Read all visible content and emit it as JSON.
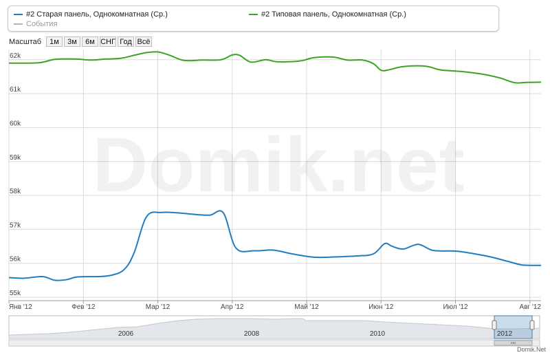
{
  "legend": {
    "items": [
      {
        "label": "#2 Старая панель, Однокомнатная (Ср.)",
        "color": "#1c7cc4"
      },
      {
        "label": "#2 Типовая панель, Однокомнатная (Ср.)",
        "color": "#3aa424"
      },
      {
        "label": "События",
        "color": "#b3b3b3"
      }
    ]
  },
  "zoom": {
    "label": "Масштаб",
    "buttons": [
      "1м",
      "3м",
      "6м",
      "СНГ",
      "Год",
      "Всё"
    ]
  },
  "watermark": "Domik.net",
  "credit": "Domik.Net",
  "navigator": {
    "years": [
      "2006",
      "2008",
      "2010",
      "2012"
    ]
  },
  "chart_data": {
    "type": "line",
    "x_ticks": [
      "Янв '12",
      "Фев '12",
      "Мар '12",
      "Апр '12",
      "Май '12",
      "Июн '12",
      "Июл '12",
      "Авг '12"
    ],
    "y_ticks": [
      "55k",
      "56k",
      "57k",
      "58k",
      "59k",
      "60k",
      "61k",
      "62k"
    ],
    "ylim": [
      54900,
      62300
    ],
    "xlim": [
      0,
      7.15
    ],
    "grid": true,
    "series": [
      {
        "name": "#2 Старая панель, Однокомнатная (Ср.)",
        "color": "#1c7cc4",
        "points": [
          [
            0.0,
            55580
          ],
          [
            0.2,
            55560
          ],
          [
            0.45,
            55610
          ],
          [
            0.62,
            55500
          ],
          [
            0.78,
            55520
          ],
          [
            0.92,
            55600
          ],
          [
            1.2,
            55610
          ],
          [
            1.38,
            55650
          ],
          [
            1.55,
            55820
          ],
          [
            1.68,
            56300
          ],
          [
            1.85,
            57380
          ],
          [
            2.05,
            57500
          ],
          [
            2.25,
            57490
          ],
          [
            2.5,
            57440
          ],
          [
            2.7,
            57420
          ],
          [
            2.88,
            57490
          ],
          [
            3.05,
            56450
          ],
          [
            3.3,
            56370
          ],
          [
            3.55,
            56390
          ],
          [
            3.8,
            56280
          ],
          [
            4.1,
            56180
          ],
          [
            4.4,
            56190
          ],
          [
            4.7,
            56220
          ],
          [
            4.9,
            56280
          ],
          [
            5.05,
            56580
          ],
          [
            5.15,
            56500
          ],
          [
            5.3,
            56420
          ],
          [
            5.5,
            56560
          ],
          [
            5.7,
            56380
          ],
          [
            6.0,
            56360
          ],
          [
            6.2,
            56300
          ],
          [
            6.45,
            56200
          ],
          [
            6.7,
            56060
          ],
          [
            6.9,
            55950
          ],
          [
            7.15,
            55940
          ]
        ]
      },
      {
        "name": "#2 Типовая панель, Однокомнатная (Ср.)",
        "color": "#3aa424",
        "points": [
          [
            0.0,
            61900
          ],
          [
            0.4,
            61910
          ],
          [
            0.62,
            62010
          ],
          [
            0.9,
            62020
          ],
          [
            1.1,
            61990
          ],
          [
            1.3,
            62020
          ],
          [
            1.5,
            62040
          ],
          [
            1.7,
            62140
          ],
          [
            1.85,
            62210
          ],
          [
            2.0,
            62230
          ],
          [
            2.15,
            62140
          ],
          [
            2.35,
            61980
          ],
          [
            2.6,
            61990
          ],
          [
            2.85,
            62000
          ],
          [
            3.0,
            62140
          ],
          [
            3.1,
            62130
          ],
          [
            3.25,
            61930
          ],
          [
            3.45,
            62000
          ],
          [
            3.6,
            61940
          ],
          [
            3.9,
            61960
          ],
          [
            4.1,
            62060
          ],
          [
            4.35,
            62080
          ],
          [
            4.55,
            61990
          ],
          [
            4.75,
            61990
          ],
          [
            4.9,
            61880
          ],
          [
            5.0,
            61690
          ],
          [
            5.1,
            61700
          ],
          [
            5.3,
            61800
          ],
          [
            5.6,
            61810
          ],
          [
            5.8,
            61700
          ],
          [
            6.1,
            61650
          ],
          [
            6.4,
            61560
          ],
          [
            6.6,
            61460
          ],
          [
            6.8,
            61320
          ],
          [
            6.95,
            61330
          ],
          [
            7.15,
            61340
          ]
        ]
      }
    ]
  }
}
